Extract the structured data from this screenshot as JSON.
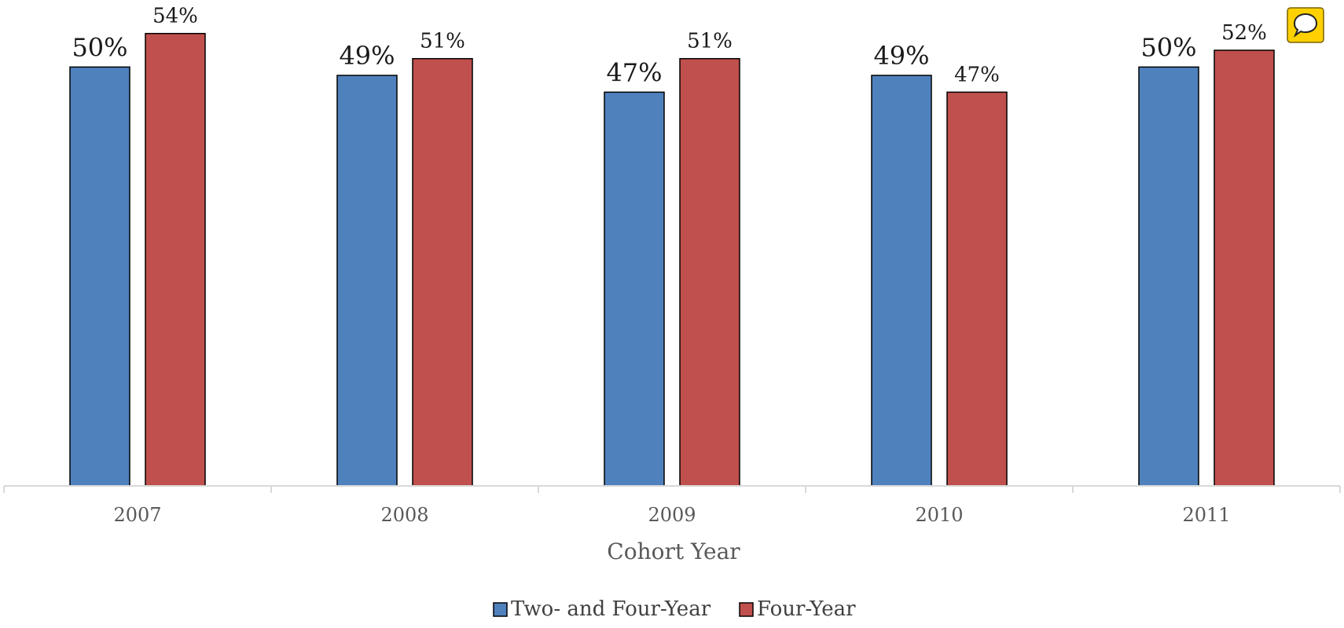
{
  "chart_data": {
    "type": "bar",
    "categories": [
      "2007",
      "2008",
      "2009",
      "2010",
      "2011"
    ],
    "series": [
      {
        "name": "Two- and Four-Year",
        "values": [
          50,
          49,
          47,
          49,
          50
        ],
        "labels": [
          "50%",
          "49%",
          "47%",
          "49%",
          "50%"
        ],
        "color": "#4F81BD"
      },
      {
        "name": "Four-Year",
        "values": [
          54,
          51,
          51,
          47,
          52
        ],
        "labels": [
          "54%",
          "51%",
          "51%",
          "47%",
          "52%"
        ],
        "color": "#C0504D"
      }
    ],
    "title": "",
    "xlabel": "Cohort Year",
    "ylabel": "",
    "ylim": [
      0,
      58
    ],
    "grid": false,
    "legend_position": "bottom",
    "y_axis_visible": false
  },
  "comment_icon": {
    "name": "speech-bubble-icon",
    "color": "#FFD100"
  }
}
